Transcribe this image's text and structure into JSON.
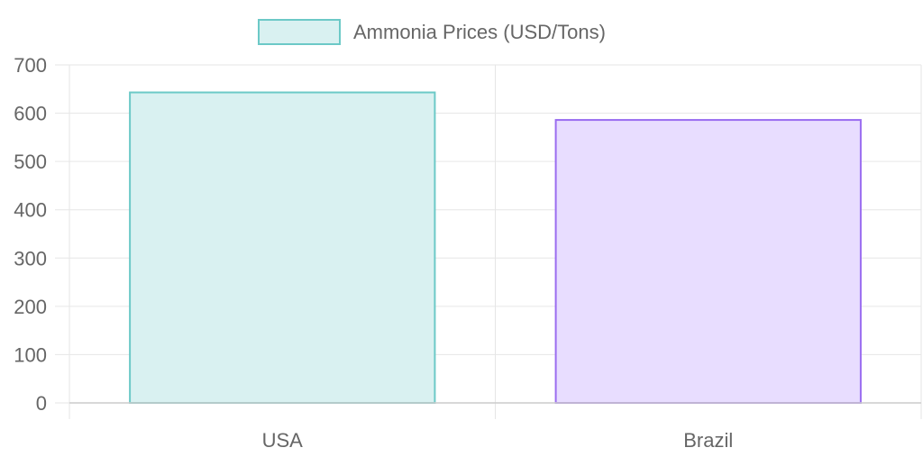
{
  "chart_data": {
    "type": "bar",
    "categories": [
      "USA",
      "Brazil"
    ],
    "series": [
      {
        "name": "Ammonia Prices (USD/Tons)",
        "values": [
          643,
          586
        ]
      }
    ],
    "ylim": [
      0,
      700
    ],
    "y_ticks": [
      0,
      100,
      200,
      300,
      400,
      500,
      600,
      700
    ],
    "grid": true,
    "legend_position": "top-center",
    "bar_colors": [
      {
        "fill": "#d9f1f1",
        "stroke": "#6cc9c7"
      },
      {
        "fill": "#e8ddff",
        "stroke": "#9a6df0"
      }
    ],
    "legend_color": {
      "fill": "#d9f1f1",
      "stroke": "#6cc9c7"
    },
    "grid_color": "#e6e6e6",
    "tick_color": "#666666"
  }
}
